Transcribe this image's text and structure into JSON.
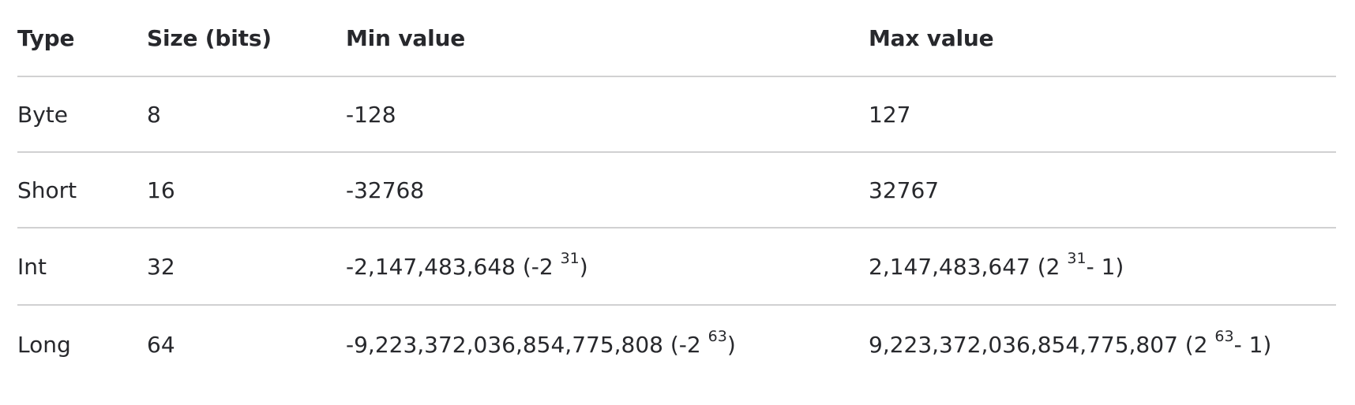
{
  "table": {
    "headers": {
      "type": "Type",
      "size": "Size (bits)",
      "min": "Min value",
      "max": "Max value"
    },
    "rows": [
      {
        "type": "Byte",
        "size": "8",
        "min": {
          "text": "-128"
        },
        "max": {
          "text": "127"
        }
      },
      {
        "type": "Short",
        "size": "16",
        "min": {
          "text": "-32768"
        },
        "max": {
          "text": "32767"
        }
      },
      {
        "type": "Int",
        "size": "32",
        "min": {
          "prefix": "-2,147,483,648 (-2 ",
          "exp": "31",
          "suffix": ")"
        },
        "max": {
          "prefix": "2,147,483,647 (2 ",
          "exp": "31",
          "suffix": "- 1)"
        }
      },
      {
        "type": "Long",
        "size": "64",
        "min": {
          "prefix": "-9,223,372,036,854,775,808 (-2 ",
          "exp": "63",
          "suffix": ")"
        },
        "max": {
          "prefix": "9,223,372,036,854,775,807 (2 ",
          "exp": "63",
          "suffix": "- 1)"
        }
      }
    ]
  }
}
